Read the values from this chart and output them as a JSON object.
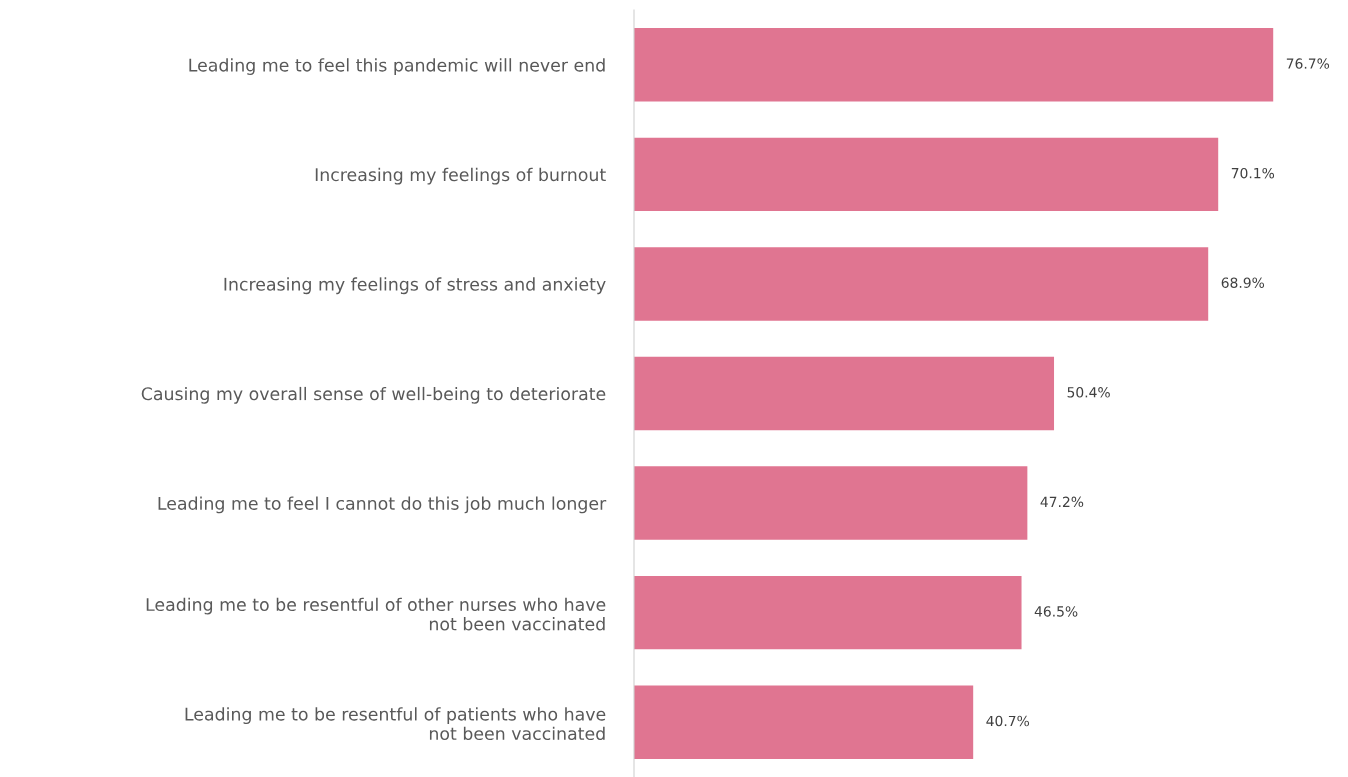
{
  "chart_data": {
    "type": "bar",
    "orientation": "horizontal",
    "color": "#e07591",
    "value_labels": [
      "76.7%",
      "70.1%",
      "68.9%",
      "50.4%",
      "47.2%",
      "46.5%",
      "40.7%"
    ],
    "categories": [
      "Leading me to feel this pandemic will never end",
      "Increasing my feelings of burnout",
      "Increasing my feelings of stress and anxiety",
      "Causing my overall sense of well-being to deteriorate",
      "Leading me to feel I cannot do this job much longer",
      "Leading me to be resentful of other nurses who have\nnot been vaccinated",
      "Leading me to be resentful of patients who have\nnot been vaccinated"
    ],
    "values": [
      76.7,
      70.1,
      68.9,
      50.4,
      47.2,
      46.5,
      40.7
    ]
  }
}
